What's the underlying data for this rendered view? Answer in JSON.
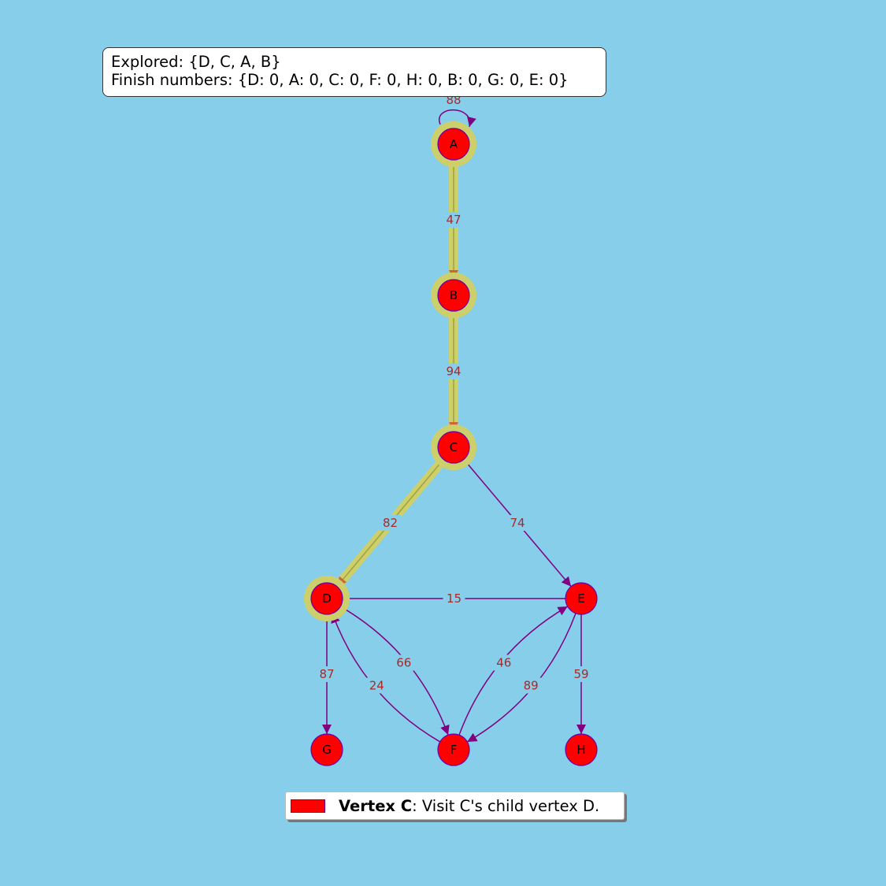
{
  "info": {
    "explored": "Explored: {D, C, A, B}",
    "finish": "Finish numbers: {D: 0, A: 0, C: 0, F: 0, H: 0, B: 0, G: 0, E: 0}"
  },
  "legend": {
    "bold": "Vertex C",
    "text": ": Visit C's child vertex D."
  },
  "colors": {
    "background": "#87CEEB",
    "node_fill": "#ff0000",
    "node_stroke": "#6a00aa",
    "edge": "#800080",
    "edge_label": "#a52a2a",
    "highlight": "#cdd06a"
  },
  "graph": {
    "nodes": [
      {
        "id": "A",
        "highlighted": true
      },
      {
        "id": "B",
        "highlighted": true
      },
      {
        "id": "C",
        "highlighted": true
      },
      {
        "id": "D",
        "highlighted": true
      },
      {
        "id": "E",
        "highlighted": false
      },
      {
        "id": "F",
        "highlighted": false
      },
      {
        "id": "G",
        "highlighted": false
      },
      {
        "id": "H",
        "highlighted": false
      }
    ],
    "edges": [
      {
        "from": "A",
        "to": "A",
        "weight": "88",
        "highlighted": false
      },
      {
        "from": "A",
        "to": "B",
        "weight": "47",
        "highlighted": true
      },
      {
        "from": "B",
        "to": "C",
        "weight": "94",
        "highlighted": true
      },
      {
        "from": "C",
        "to": "D",
        "weight": "82",
        "highlighted": true
      },
      {
        "from": "C",
        "to": "E",
        "weight": "74",
        "highlighted": false
      },
      {
        "from": "D",
        "to": "E",
        "weight": "15",
        "highlighted": false,
        "directed": false
      },
      {
        "from": "D",
        "to": "G",
        "weight": "87",
        "highlighted": false
      },
      {
        "from": "D",
        "to": "F",
        "weight": "66",
        "highlighted": false
      },
      {
        "from": "F",
        "to": "D",
        "weight": "24",
        "highlighted": false
      },
      {
        "from": "E",
        "to": "F",
        "weight": "89",
        "highlighted": false
      },
      {
        "from": "F",
        "to": "E",
        "weight": "46",
        "highlighted": false
      },
      {
        "from": "E",
        "to": "H",
        "weight": "59",
        "highlighted": false
      }
    ]
  }
}
